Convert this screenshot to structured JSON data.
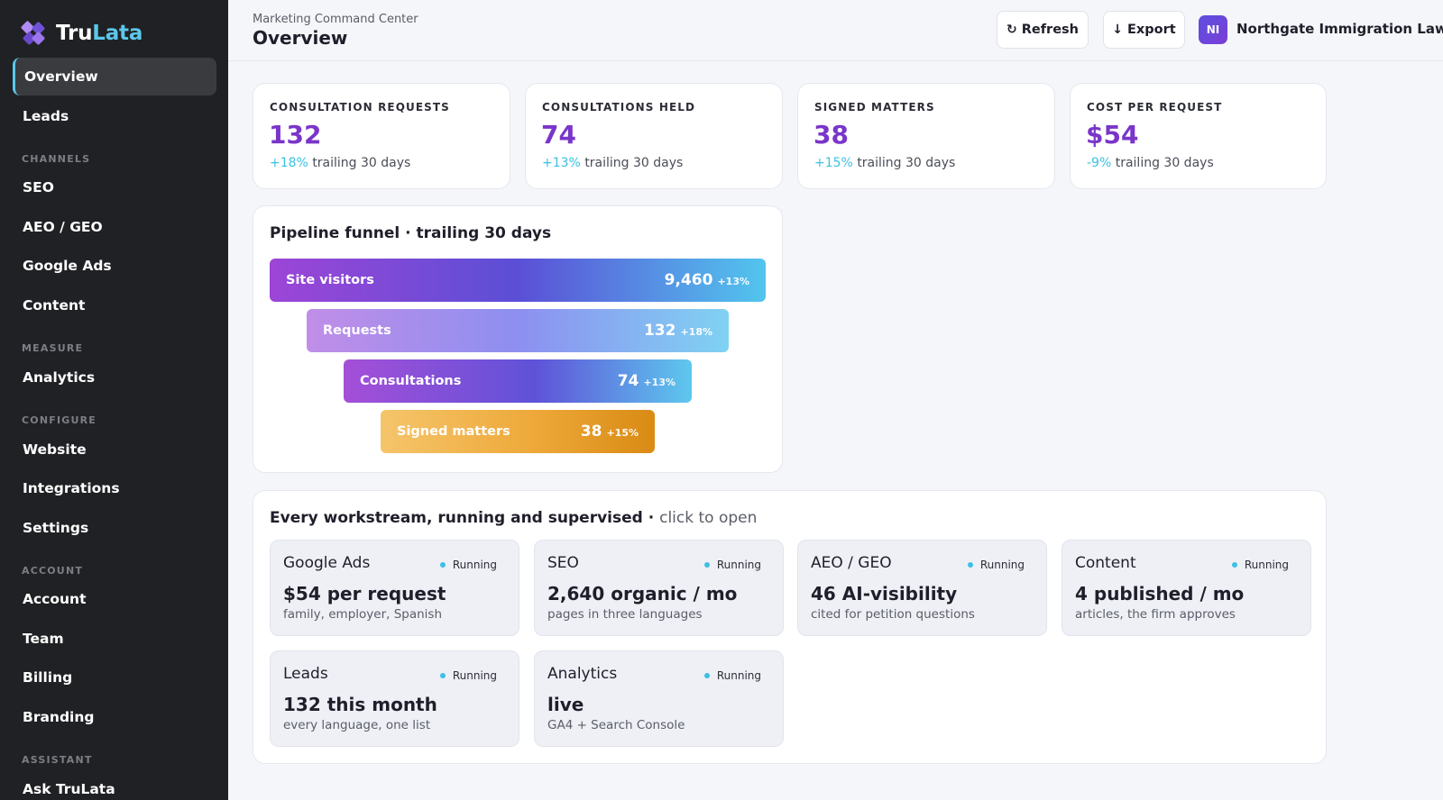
{
  "sidebar": {
    "brand_prefix": "Tru",
    "brand_suffix": "Lata",
    "top_items": [
      "Overview",
      "Leads"
    ],
    "channels_heading": "CHANNELS",
    "channels": [
      "SEO",
      "AEO / GEO",
      "Google Ads",
      "Content"
    ],
    "measure_heading": "MEASURE",
    "measure": [
      "Analytics"
    ],
    "configure_heading": "CONFIGURE",
    "configure": [
      "Website",
      "Integrations",
      "Settings"
    ],
    "account_heading": "ACCOUNT",
    "account": [
      "Account",
      "Team",
      "Billing",
      "Branding"
    ],
    "assistant_heading": "ASSISTANT",
    "assistant": [
      "Ask TruLata"
    ],
    "active_item": "Overview"
  },
  "header": {
    "subtitle": "Marketing Command Center",
    "title": "Overview",
    "refresh_label": "Refresh",
    "export_label": "Export",
    "avatar_initials": "NI",
    "firm_name": "Northgate Immigration Law"
  },
  "kpis": [
    {
      "label": "CONSULTATION REQUESTS",
      "value": "132",
      "delta": "+18%",
      "period": "trailing 30 days"
    },
    {
      "label": "CONSULTATIONS HELD",
      "value": "74",
      "delta": "+13%",
      "period": "trailing 30 days"
    },
    {
      "label": "SIGNED MATTERS",
      "value": "38",
      "delta": "+15%",
      "period": "trailing 30 days"
    },
    {
      "label": "COST PER REQUEST",
      "value": "$54",
      "delta": "-9%",
      "period": "trailing 30 days"
    }
  ],
  "funnel": {
    "title": "Pipeline funnel · trailing 30 days",
    "stages": [
      {
        "label": "Site visitors",
        "value": "9,460",
        "delta": "+13%"
      },
      {
        "label": "Requests",
        "value": "132",
        "delta": "+18%"
      },
      {
        "label": "Consultations",
        "value": "74",
        "delta": "+13%"
      },
      {
        "label": "Signed matters",
        "value": "38",
        "delta": "+15%"
      }
    ]
  },
  "workstreams": {
    "title": "Every workstream, running and supervised ·",
    "hint": "click to open",
    "items": [
      {
        "name": "Google Ads",
        "status": "Running",
        "metric": "$54 per request",
        "sub": "family, employer, Spanish"
      },
      {
        "name": "SEO",
        "status": "Running",
        "metric": "2,640 organic / mo",
        "sub": "pages in three languages"
      },
      {
        "name": "AEO / GEO",
        "status": "Running",
        "metric": "46 AI-visibility",
        "sub": "cited for petition questions"
      },
      {
        "name": "Content",
        "status": "Running",
        "metric": "4 published / mo",
        "sub": "articles, the firm approves"
      },
      {
        "name": "Leads",
        "status": "Running",
        "metric": "132 this month",
        "sub": "every language, one list"
      },
      {
        "name": "Analytics",
        "status": "Running",
        "metric": "live",
        "sub": "GA4 + Search Console"
      }
    ]
  },
  "colors": {
    "sidebar_bg": "#202124",
    "accent_cyan": "#3cc0e2",
    "accent_purple": "#7a35c9"
  }
}
